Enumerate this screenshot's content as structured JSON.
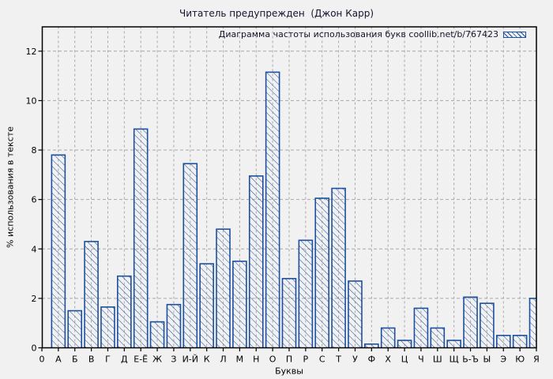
{
  "chart_data": {
    "type": "bar",
    "title": "Читатель предупрежден  (Джон Карр)",
    "legend_label": "Диаграмма частоты использования букв coollib.net/b/767423",
    "xlabel": "Буквы",
    "ylabel": "% использования в тексте",
    "x_first_tick": "0",
    "categories": [
      "А",
      "Б",
      "В",
      "Г",
      "Д",
      "Е-Ё",
      "Ж",
      "З",
      "И-Й",
      "К",
      "Л",
      "М",
      "Н",
      "О",
      "П",
      "Р",
      "С",
      "Т",
      "У",
      "Ф",
      "Х",
      "Ц",
      "Ч",
      "Ш",
      "Щ",
      "Ь-Ъ",
      "Ы",
      "Э",
      "Ю",
      "Я"
    ],
    "values": [
      7.8,
      1.5,
      4.3,
      1.65,
      2.9,
      8.85,
      1.05,
      1.75,
      7.45,
      3.4,
      4.8,
      3.5,
      6.95,
      11.15,
      2.8,
      4.35,
      6.05,
      6.45,
      2.7,
      0.15,
      0.8,
      0.3,
      1.6,
      0.8,
      0.3,
      2.05,
      1.8,
      0.5,
      0.5,
      2.0
    ],
    "yticks": [
      0,
      2,
      4,
      6,
      8,
      10,
      12
    ],
    "ylim": [
      0,
      13
    ],
    "grid": "dashed-both-axes",
    "legend_position": "top-right-inside",
    "hatch": "backslash-diagonal",
    "colors": {
      "bar": "#1d4f9e",
      "background": "#f1f1f1",
      "grid": "#a8a8a8",
      "axis": "#000000",
      "title_text": "#14142e",
      "tick_text": "#000000"
    }
  }
}
